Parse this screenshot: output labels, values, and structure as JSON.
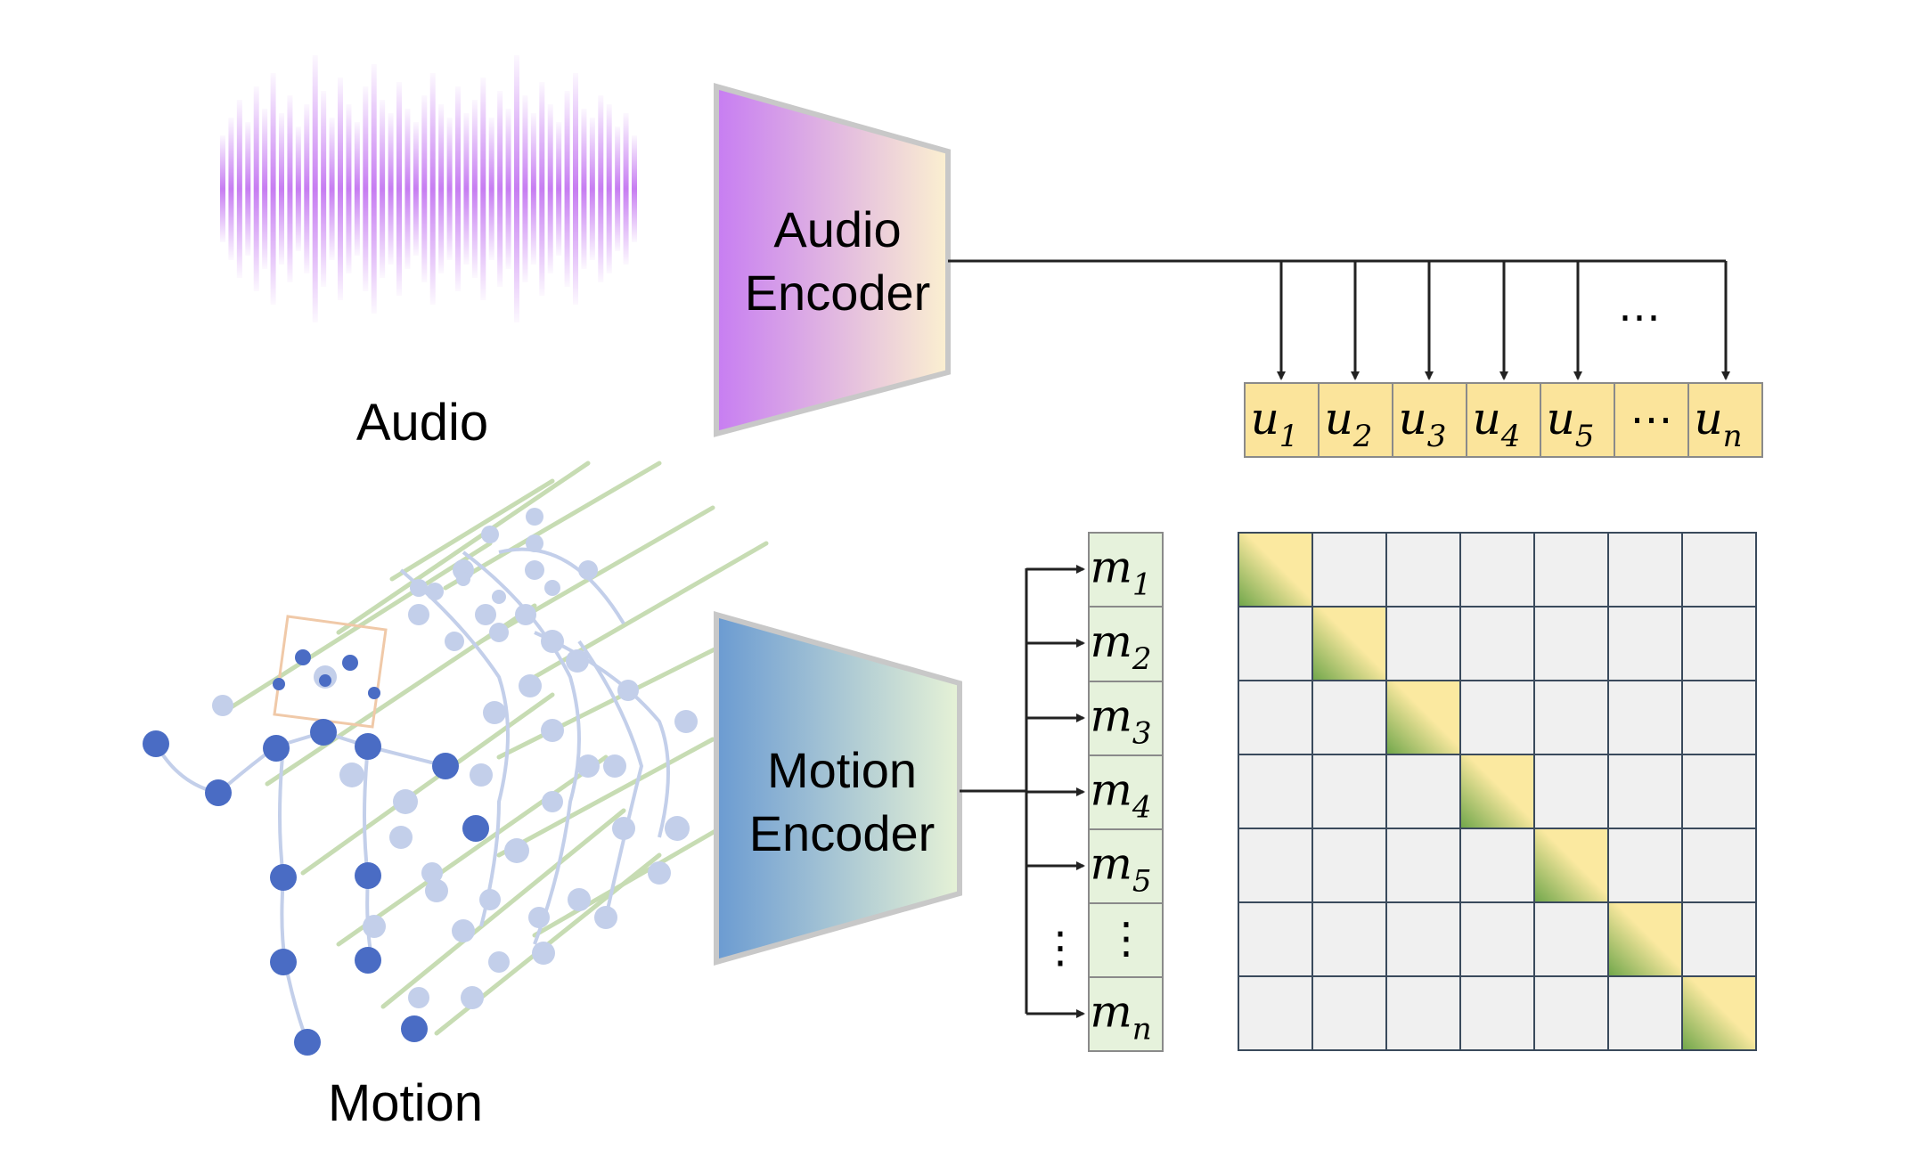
{
  "labels": {
    "audio": "Audio",
    "motion": "Motion",
    "audio_encoder_line1": "Audio",
    "audio_encoder_line2": "Encoder",
    "motion_encoder_line1": "Motion",
    "motion_encoder_line2": "Encoder"
  },
  "audio_tokens": [
    {
      "base": "u",
      "sub": "1"
    },
    {
      "base": "u",
      "sub": "2"
    },
    {
      "base": "u",
      "sub": "3"
    },
    {
      "base": "u",
      "sub": "4"
    },
    {
      "base": "u",
      "sub": "5"
    },
    {
      "base": "⋯",
      "sub": ""
    },
    {
      "base": "u",
      "sub": "n"
    }
  ],
  "motion_tokens": [
    {
      "base": "m",
      "sub": "1"
    },
    {
      "base": "m",
      "sub": "2"
    },
    {
      "base": "m",
      "sub": "3"
    },
    {
      "base": "m",
      "sub": "4"
    },
    {
      "base": "m",
      "sub": "5"
    },
    {
      "base": "⋮",
      "sub": ""
    },
    {
      "base": "m",
      "sub": "n"
    }
  ],
  "ellipsis_horizontal": "⋯",
  "ellipsis_vertical": "⋮",
  "matrix": {
    "rows": 7,
    "cols": 7,
    "highlight": "diagonal"
  },
  "colors": {
    "audio_purple": "#c77df2",
    "audio_cream": "#fbf0d0",
    "motion_blue": "#6b9bd2",
    "motion_light": "#e6f2d6",
    "token_yellow": "#fbe49b",
    "token_green_cell": "#e6f2dc",
    "matrix_cell": "#f0f0f0",
    "matrix_grid": "#3a4a5c",
    "diag_green": "#6fa64a",
    "diag_yellow": "#fbe9a0",
    "skeleton_dark": "#4a6cc4",
    "skeleton_light": "#c3cfea"
  }
}
